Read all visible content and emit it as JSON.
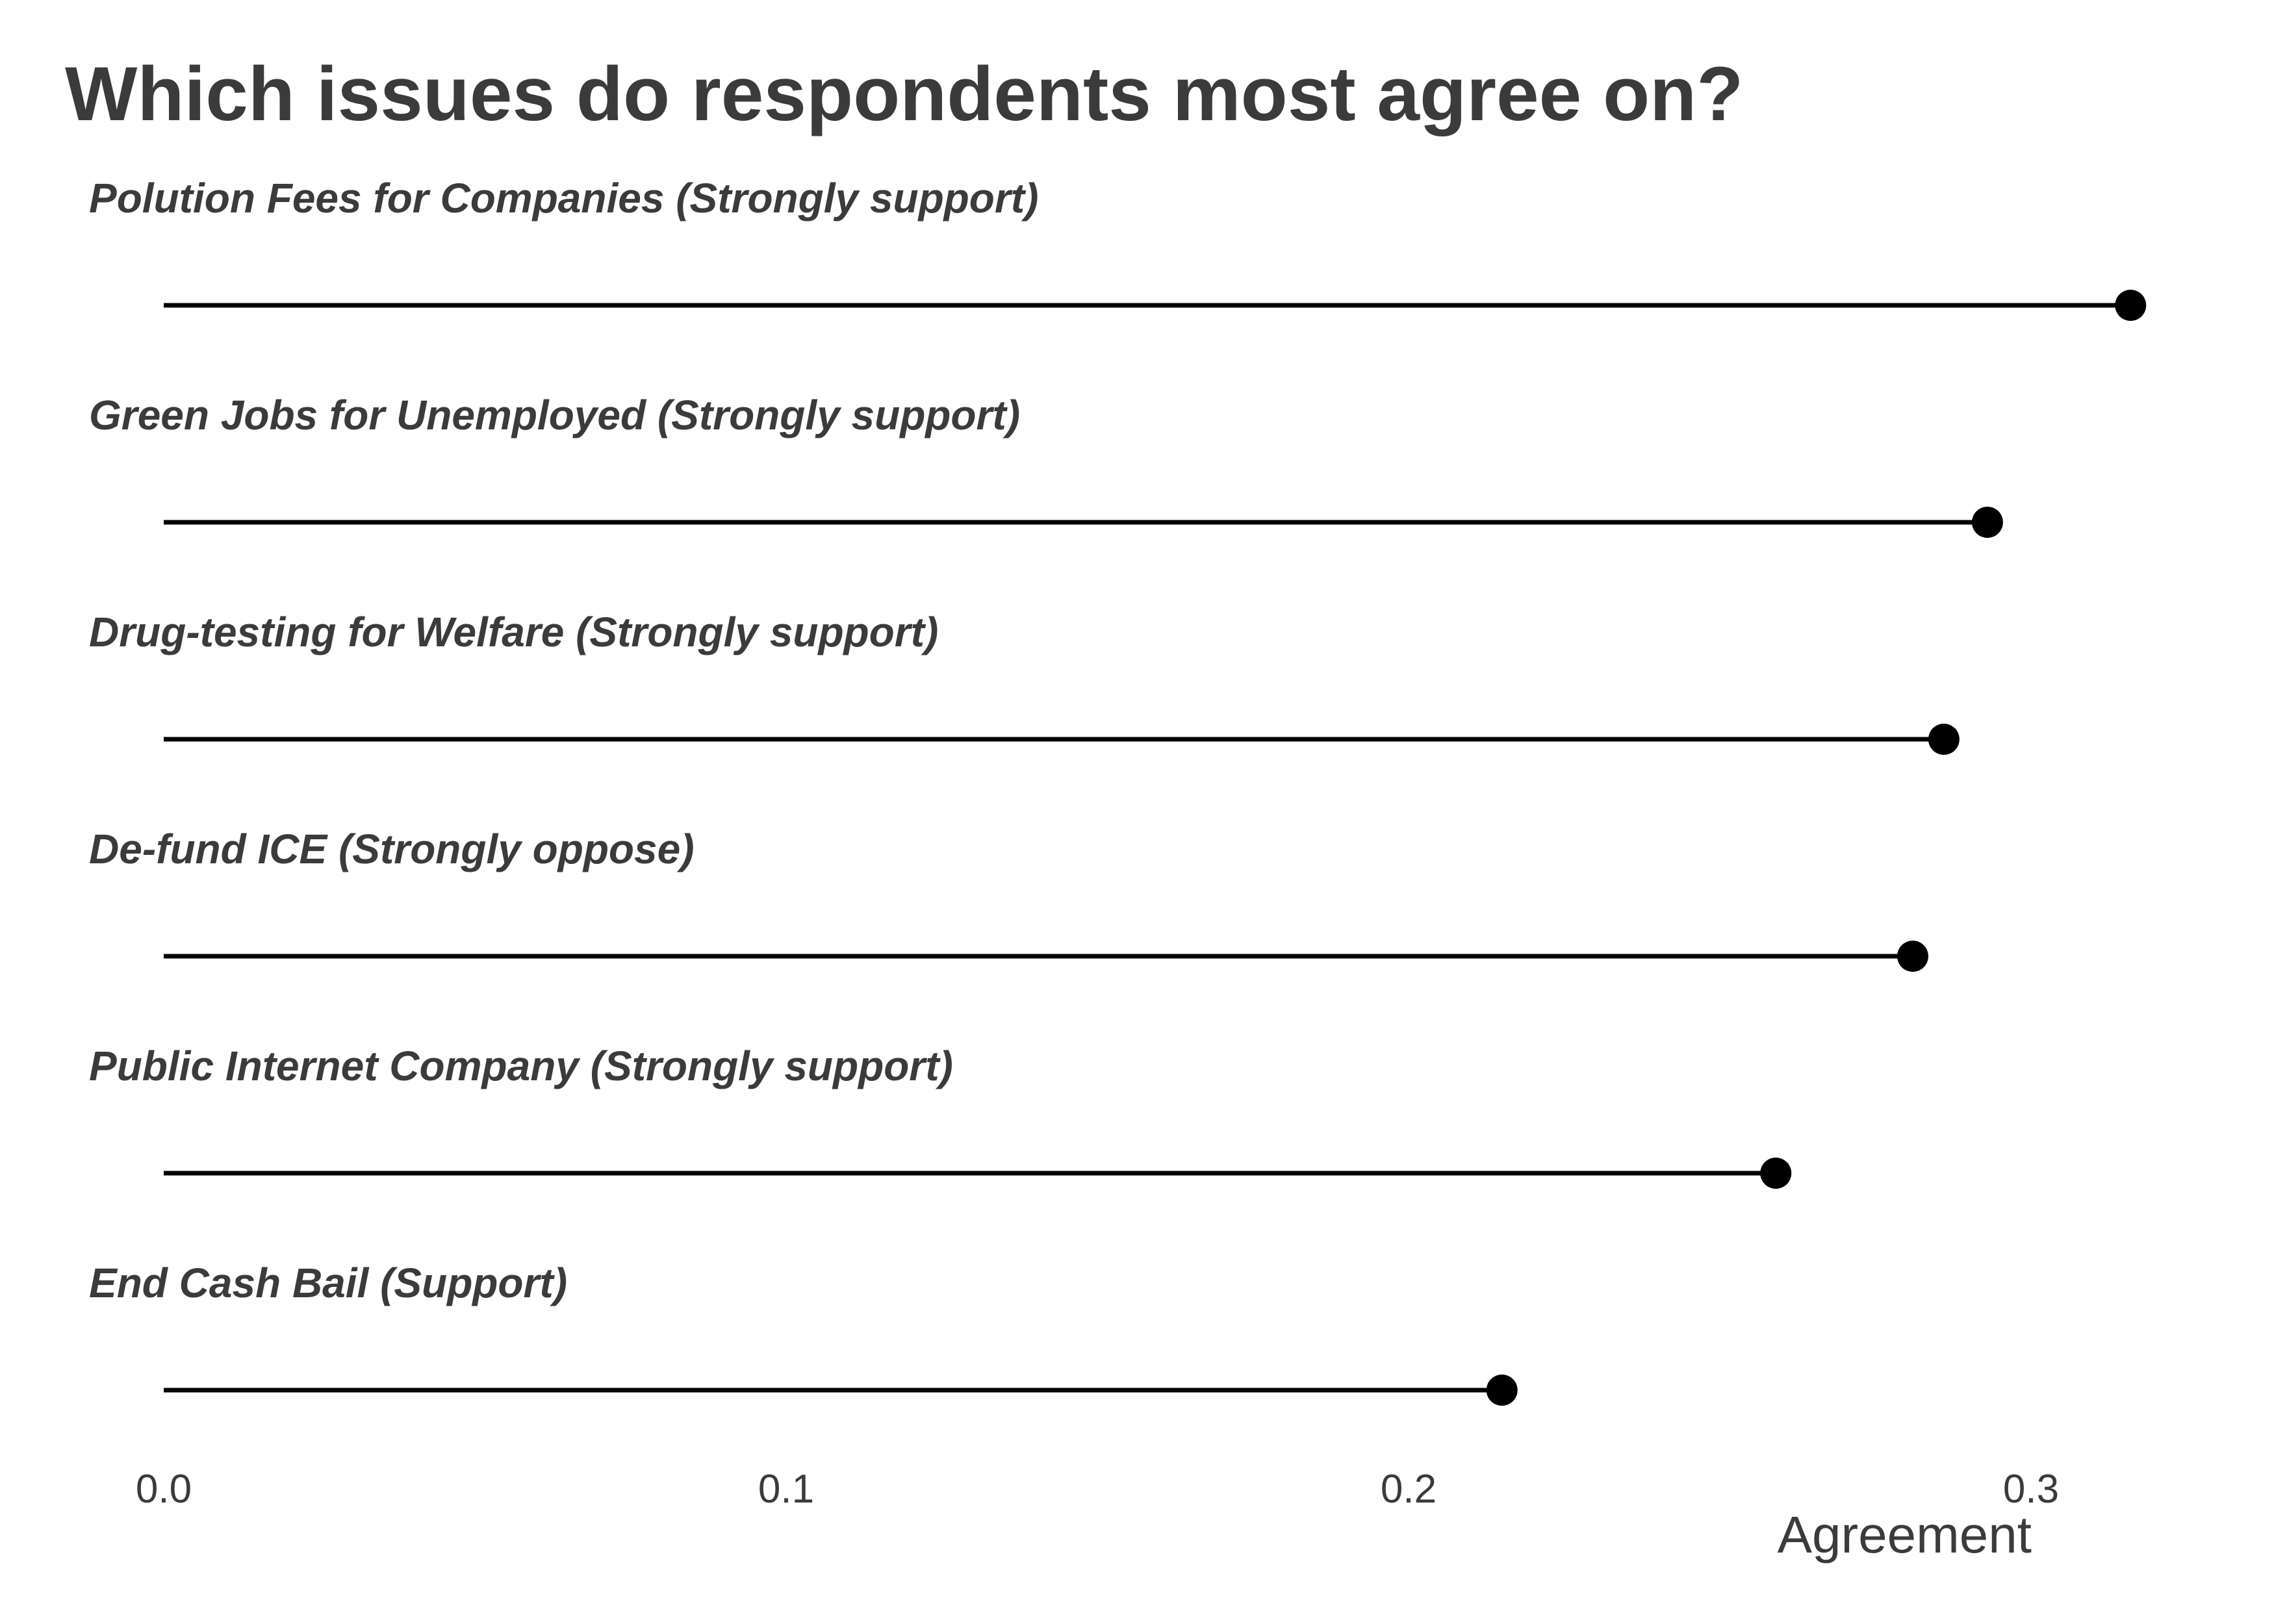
{
  "chart_data": {
    "type": "lollipop",
    "title": "Which issues do respondents most agree on?",
    "xlabel": "Agreement",
    "ylabel": "",
    "xlim": [
      0.0,
      0.32
    ],
    "x_ticks": [
      0.0,
      0.1,
      0.2,
      0.3
    ],
    "x_tick_labels": [
      "0.0",
      "0.1",
      "0.2",
      "0.3"
    ],
    "grid": false,
    "categories": [
      "Polution Fees for Companies (Strongly support)",
      "Green Jobs for Unemployed (Strongly support)",
      "Drug-testing for Welfare (Strongly support)",
      "De-fund ICE (Strongly oppose)",
      "Public Internet Company (Strongly support)",
      "End Cash Bail (Support)"
    ],
    "values": [
      0.316,
      0.293,
      0.286,
      0.281,
      0.259,
      0.215
    ],
    "colors": {
      "text": "#3b3b3b",
      "mark": "#000000"
    }
  }
}
